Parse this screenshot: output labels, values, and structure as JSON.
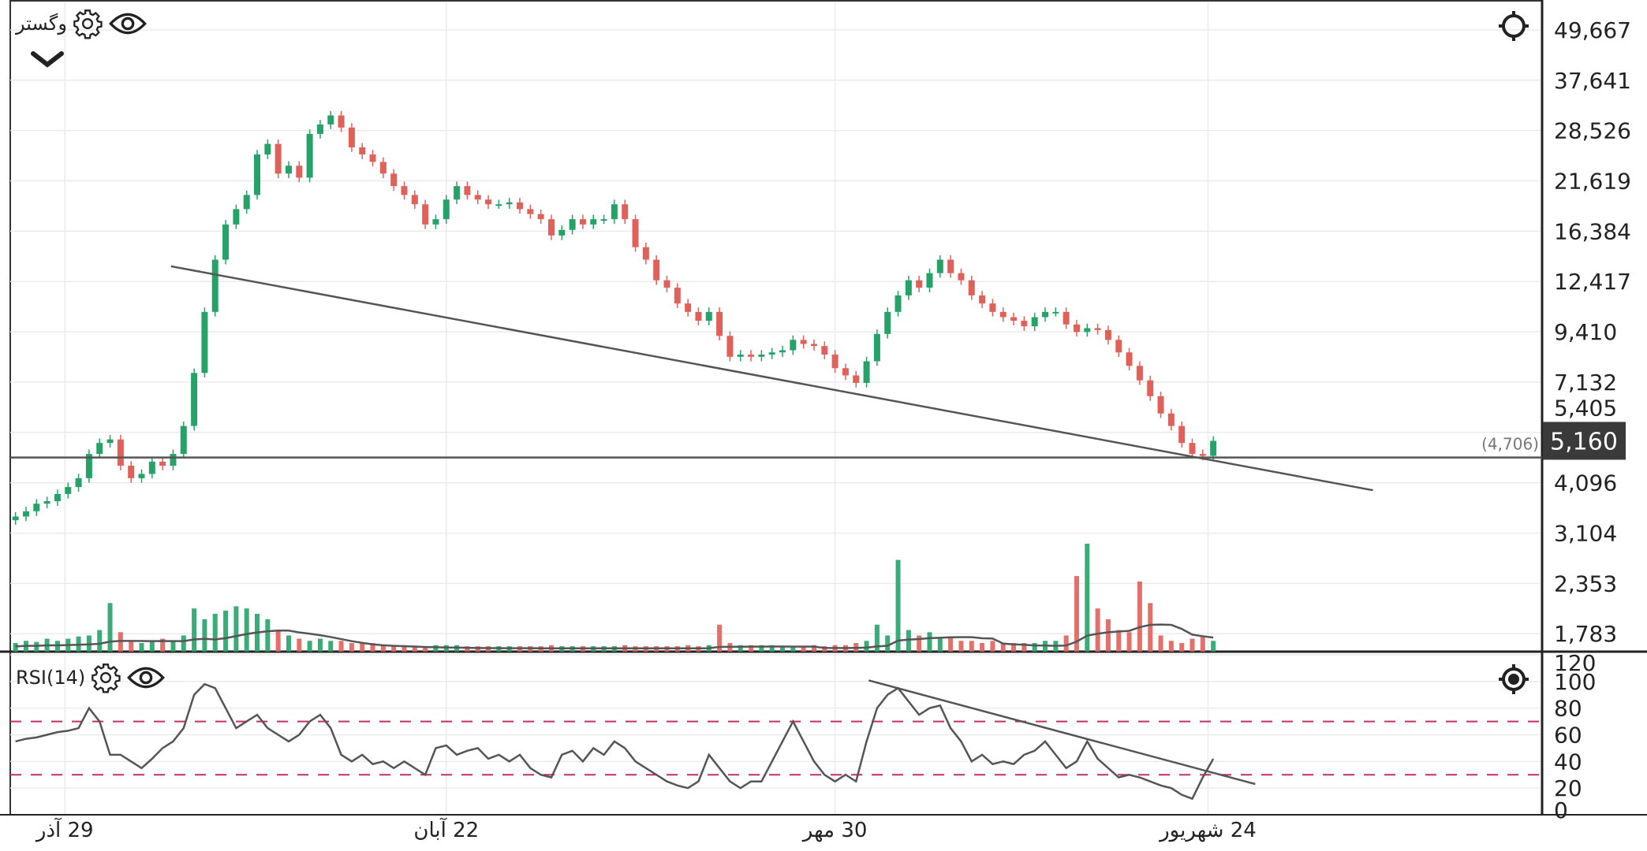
{
  "main_pane": {
    "symbol": "وگستر",
    "icons": [
      "gear-icon",
      "eye-icon",
      "chevron-down-icon",
      "crosshair-icon"
    ],
    "last_price_label": "5,160",
    "hline_label": "(4,706)"
  },
  "rsi_pane": {
    "title": "RSI(14)",
    "icons": [
      "gear-icon",
      "eye-icon",
      "target-icon"
    ]
  },
  "colors": {
    "up": "#26a269",
    "down": "#e0605a",
    "line": "#555555",
    "level": "#c2305f",
    "last_price_bg": "#3a3a3a"
  },
  "chart_data": [
    {
      "type": "candlestick",
      "yscale": "log",
      "ylim": [
        1615,
        57800
      ],
      "y_ticks": [
        "49,667",
        "37,641",
        "28,526",
        "21,619",
        "16,384",
        "12,417",
        "9,410",
        "7,132",
        "5,405",
        "4,096",
        "3,104",
        "2,353",
        "1,783"
      ],
      "y_tick_values": [
        49667,
        37641,
        28526,
        21619,
        16384,
        12417,
        9410,
        7132,
        5405,
        4096,
        3104,
        2353,
        1783
      ],
      "x_ticks": [
        {
          "label": "29 آذر",
          "index": 4.7
        },
        {
          "label": "22 آبان",
          "index": 41
        },
        {
          "label": "30 مهر",
          "index": 78
        },
        {
          "label": "24 شهریور",
          "index": 113.5
        }
      ],
      "close": [
        3400,
        3500,
        3650,
        3700,
        3850,
        4000,
        4200,
        4800,
        5100,
        5200,
        4500,
        4200,
        4300,
        4600,
        4500,
        4800,
        5600,
        7500,
        10500,
        14000,
        17000,
        18500,
        20000,
        25000,
        26500,
        22500,
        23500,
        22000,
        28000,
        29500,
        31000,
        29000,
        26000,
        25000,
        24000,
        22500,
        21000,
        20000,
        19000,
        17000,
        17500,
        19500,
        21000,
        20000,
        19500,
        19000,
        19000,
        19200,
        18500,
        18000,
        17500,
        16000,
        16500,
        17500,
        17000,
        17500,
        17500,
        19000,
        17500,
        15000,
        14000,
        12500,
        12000,
        11000,
        10500,
        10000,
        10500,
        9200,
        8200,
        8300,
        8200,
        8300,
        8400,
        8500,
        9000,
        8800,
        8700,
        8300,
        7700,
        7400,
        7100,
        8000,
        9300,
        10500,
        11500,
        12500,
        12000,
        13000,
        14000,
        13000,
        12500,
        11500,
        11000,
        10500,
        10200,
        10000,
        9700,
        10200,
        10500,
        10500,
        9800,
        9400,
        9600,
        9500,
        9000,
        8400,
        7800,
        7200,
        6600,
        6000,
        5600,
        5100,
        4800,
        4750,
        5160
      ],
      "last_price": 5160,
      "horizontal_line": 4706,
      "trendline": {
        "from": {
          "index": 14.8,
          "price": 13500
        },
        "to": {
          "index": 129.2,
          "price": 3930
        }
      }
    },
    {
      "type": "bar",
      "name": "volume",
      "values": [
        8,
        10,
        9,
        12,
        10,
        12,
        14,
        15,
        20,
        45,
        18,
        10,
        8,
        10,
        12,
        10,
        15,
        40,
        30,
        35,
        38,
        42,
        40,
        35,
        30,
        20,
        15,
        12,
        10,
        12,
        10,
        10,
        8,
        8,
        8,
        6,
        6,
        6,
        5,
        5,
        6,
        6,
        6,
        5,
        5,
        5,
        5,
        5,
        5,
        5,
        5,
        6,
        5,
        5,
        5,
        5,
        5,
        5,
        6,
        5,
        5,
        5,
        5,
        5,
        6,
        5,
        6,
        25,
        8,
        6,
        6,
        6,
        6,
        5,
        5,
        5,
        6,
        5,
        6,
        6,
        8,
        10,
        25,
        15,
        85,
        20,
        15,
        18,
        12,
        14,
        10,
        10,
        8,
        10,
        8,
        8,
        8,
        8,
        10,
        10,
        15,
        70,
        100,
        40,
        30,
        20,
        18,
        65,
        45,
        15,
        10,
        8,
        12,
        15,
        10
      ],
      "ma": true
    },
    {
      "type": "line",
      "name": "RSI(14)",
      "ylim": [
        0,
        120
      ],
      "y_ticks": [
        120,
        100,
        80,
        60,
        40,
        20,
        0
      ],
      "levels": [
        70,
        30
      ],
      "values": [
        55,
        57,
        58,
        60,
        62,
        63,
        65,
        80,
        70,
        45,
        45,
        40,
        35,
        42,
        50,
        55,
        65,
        90,
        98,
        95,
        80,
        65,
        70,
        75,
        65,
        60,
        55,
        60,
        70,
        75,
        65,
        45,
        40,
        45,
        38,
        40,
        35,
        40,
        35,
        30,
        50,
        52,
        45,
        48,
        50,
        42,
        45,
        40,
        45,
        35,
        30,
        28,
        45,
        48,
        40,
        50,
        45,
        55,
        50,
        40,
        35,
        30,
        25,
        22,
        20,
        25,
        45,
        35,
        25,
        20,
        25,
        25,
        40,
        55,
        70,
        55,
        40,
        30,
        25,
        30,
        25,
        55,
        80,
        90,
        95,
        85,
        75,
        80,
        82,
        65,
        55,
        40,
        45,
        38,
        40,
        38,
        45,
        48,
        55,
        45,
        35,
        40,
        55,
        42,
        35,
        28,
        30,
        28,
        25,
        22,
        20,
        15,
        12,
        28,
        42
      ],
      "trendline": {
        "from": {
          "index": 81.2,
          "value": 100.8
        },
        "to": {
          "index": 118,
          "value": 23
        }
      }
    }
  ]
}
